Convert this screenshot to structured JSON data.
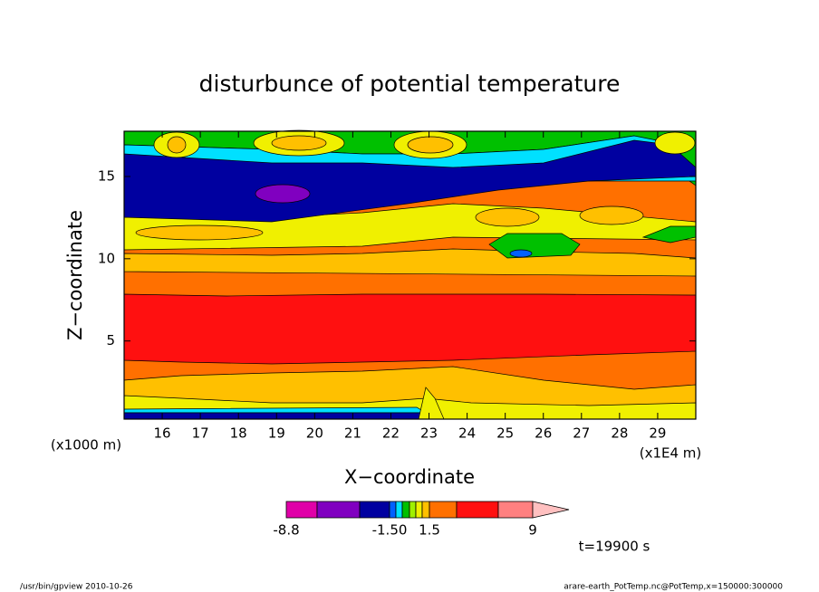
{
  "chart_data": {
    "type": "contour",
    "title": "disturbunce of potential temperature",
    "x_label": "X−coordinate",
    "y_label": "Z−coordinate",
    "x_unit": "(x1E4 m)",
    "y_unit": "(x1000 m)",
    "xlim": [
      15,
      30
    ],
    "ylim": [
      0.25,
      17.75
    ],
    "xticks": [
      16,
      17,
      18,
      19,
      20,
      21,
      22,
      23,
      24,
      25,
      26,
      27,
      28,
      29
    ],
    "yticks": [
      5,
      10,
      15
    ],
    "colorbar": {
      "levels": [
        -8.8,
        -6,
        -3,
        -1.5,
        -1,
        -0.5,
        0,
        0.5,
        1,
        1.5,
        3,
        6,
        9
      ],
      "colors": [
        "#e000a8",
        "#8000c0",
        "#0000a0",
        "#0060ff",
        "#00e0ff",
        "#00c000",
        "#a0f000",
        "#f0f000",
        "#ffc000",
        "#ff7000",
        "#ff1010",
        "#ff8080"
      ],
      "extend_color": "#ffc0c0",
      "ticks": [
        -8.8,
        {
          "value": -1.5,
          "label": "-1.50"
        },
        1.5,
        9
      ]
    },
    "annotation": "t=19900 s"
  },
  "footer": {
    "left": "/usr/bin/gpview  2010-10-26",
    "right": "arare-earth_PotTemp.nc@PotTemp,x=150000:300000"
  }
}
